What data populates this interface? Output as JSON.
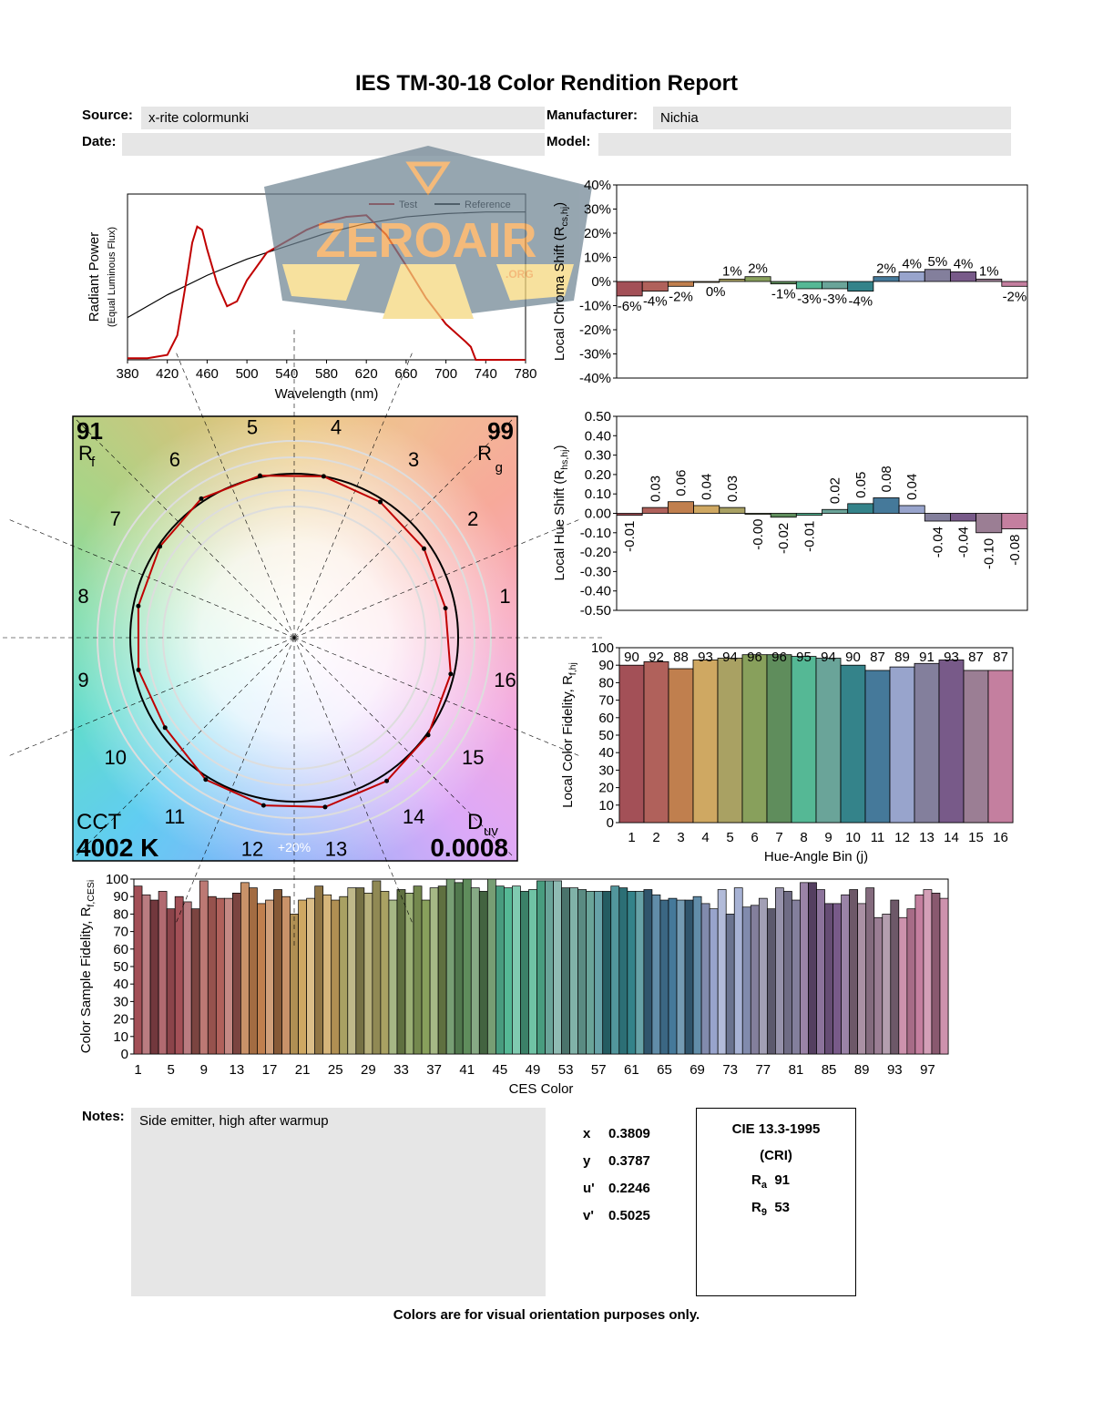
{
  "header": {
    "title": "IES TM-30-18 Color Rendition Report",
    "source_label": "Source:",
    "source_value": "x-rite colormunki",
    "manufacturer_label": "Manufacturer:",
    "manufacturer_value": "Nichia",
    "date_label": "Date:",
    "date_value": "",
    "model_label": "Model:",
    "model_value": ""
  },
  "watermark": {
    "text": "ZEROAIR",
    "suffix": ".ORG"
  },
  "bin_colors": [
    "#a35057",
    "#b0615b",
    "#c07f4e",
    "#cfa862",
    "#a9a163",
    "#88a05c",
    "#5f8d5c",
    "#55b895",
    "#6aa499",
    "#34838a",
    "#45799a",
    "#98a4cc",
    "#837f9c",
    "#785a89",
    "#9b7e94",
    "#c47f9f"
  ],
  "chart_data": [
    {
      "id": "spectrum",
      "type": "line",
      "xlabel": "Wavelength (nm)",
      "ylabel": "Radiant Power",
      "ylabel_sub": "(Equal Luminous Flux)",
      "xlim": [
        380,
        780
      ],
      "xticks": [
        380,
        420,
        460,
        500,
        540,
        580,
        620,
        660,
        700,
        740,
        780
      ],
      "legend_placement": "top-right",
      "series": [
        {
          "name": "Test",
          "color": "#c00000",
          "x": [
            380,
            400,
            420,
            430,
            440,
            445,
            450,
            455,
            460,
            470,
            480,
            490,
            500,
            520,
            540,
            560,
            580,
            600,
            620,
            640,
            660,
            680,
            700,
            720,
            725,
            730,
            780
          ],
          "y": [
            0.01,
            0.01,
            0.03,
            0.15,
            0.52,
            0.72,
            0.82,
            0.8,
            0.68,
            0.47,
            0.33,
            0.36,
            0.49,
            0.66,
            0.73,
            0.8,
            0.85,
            0.88,
            0.89,
            0.77,
            0.58,
            0.38,
            0.22,
            0.11,
            0.08,
            0,
            0
          ]
        },
        {
          "name": "Reference",
          "color": "#000000",
          "x": [
            380,
            420,
            460,
            500,
            540,
            580,
            620,
            660,
            700,
            740,
            780
          ],
          "y": [
            0.26,
            0.4,
            0.52,
            0.62,
            0.7,
            0.78,
            0.84,
            0.88,
            0.9,
            0.91,
            0.91
          ]
        }
      ]
    },
    {
      "id": "chroma",
      "type": "bar",
      "ylabel": "Local Chroma Shift (R",
      "ylabel_sub": "cs,hj",
      "ylabel_end": ")",
      "ylim": [
        -40,
        40
      ],
      "yticks": [
        "40%",
        "30%",
        "20%",
        "10%",
        "0%",
        "-10%",
        "-20%",
        "-30%",
        "-40%"
      ],
      "values": [
        -6,
        -4,
        -2,
        0,
        1,
        2,
        -1,
        -3,
        -3,
        -4,
        2,
        4,
        5,
        4,
        1,
        -2
      ],
      "labels": [
        "-6%",
        "-4%",
        "-2%",
        "0%",
        "1%",
        "2%",
        "-1%",
        "-3%",
        "-3%",
        "-4%",
        "2%",
        "4%",
        "5%",
        "4%",
        "1%",
        "-2%"
      ]
    },
    {
      "id": "hue",
      "type": "bar",
      "ylabel": "Local Hue Shift (R",
      "ylabel_sub": "hs,hj",
      "ylabel_end": ")",
      "ylim": [
        -0.5,
        0.5
      ],
      "yticks": [
        "0.50",
        "0.40",
        "0.30",
        "0.20",
        "0.10",
        "0.00",
        "-0.10",
        "-0.20",
        "-0.30",
        "-0.40",
        "-0.50"
      ],
      "values": [
        -0.01,
        0.03,
        0.06,
        0.04,
        0.03,
        -0.0,
        -0.02,
        -0.01,
        0.02,
        0.05,
        0.08,
        0.04,
        -0.04,
        -0.04,
        -0.1,
        -0.08
      ],
      "labels": [
        "-0.01",
        "0.03",
        "0.06",
        "0.04",
        "0.03",
        "-0.00",
        "-0.02",
        "-0.01",
        "0.02",
        "0.05",
        "0.08",
        "0.04",
        "-0.04",
        "-0.04",
        "-0.10",
        "-0.08"
      ]
    },
    {
      "id": "local_fidelity",
      "type": "bar",
      "xlabel": "Hue-Angle Bin (j)",
      "ylabel": "Local Color Fidelity, R",
      "ylabel_sub": "f,hj",
      "ylim": [
        0,
        100
      ],
      "yticks": [
        "100",
        "90",
        "80",
        "70",
        "60",
        "50",
        "40",
        "30",
        "20",
        "10",
        "0"
      ],
      "categories": [
        "1",
        "2",
        "3",
        "4",
        "5",
        "6",
        "7",
        "8",
        "9",
        "10",
        "11",
        "12",
        "13",
        "14",
        "15",
        "16"
      ],
      "values": [
        90,
        92,
        88,
        93,
        94,
        96,
        96,
        95,
        94,
        90,
        87,
        89,
        91,
        93,
        87,
        87
      ]
    },
    {
      "id": "ces",
      "type": "bar",
      "xlabel": "CES Color",
      "ylabel": "Color Sample Fidelity, R",
      "ylabel_sub": "f,CESi",
      "ylim": [
        0,
        100
      ],
      "yticks": [
        "100",
        "90",
        "80",
        "70",
        "60",
        "50",
        "40",
        "30",
        "20",
        "10",
        "0"
      ],
      "xticks": [
        "1",
        "5",
        "9",
        "13",
        "17",
        "21",
        "25",
        "29",
        "33",
        "37",
        "41",
        "45",
        "49",
        "53",
        "57",
        "61",
        "65",
        "69",
        "73",
        "77",
        "81",
        "85",
        "89",
        "93",
        "97"
      ],
      "values": [
        96,
        91,
        88,
        93,
        83,
        90,
        87,
        83,
        99,
        90,
        89,
        89,
        92,
        98,
        95,
        86,
        88,
        94,
        90,
        80,
        88,
        89,
        96,
        91,
        88,
        90,
        95,
        95,
        92,
        99,
        93,
        88,
        94,
        92,
        96,
        88,
        95,
        96,
        100,
        98,
        100,
        95,
        93,
        100,
        96,
        95,
        96,
        93,
        94,
        99,
        99,
        99,
        95,
        95,
        94,
        93,
        93,
        93,
        96,
        95,
        93,
        93,
        94,
        91,
        88,
        89,
        88,
        88,
        90,
        86,
        83,
        94,
        80,
        95,
        84,
        85,
        89,
        83,
        95,
        93,
        88,
        98,
        98,
        94,
        86,
        86,
        91,
        94,
        86,
        95,
        78,
        80,
        88,
        78,
        83,
        91,
        94,
        92,
        89
      ]
    },
    {
      "id": "vector_graphic",
      "type": "scatter",
      "bin_labels": [
        "1",
        "2",
        "3",
        "4",
        "5",
        "6",
        "7",
        "8",
        "9",
        "10",
        "11",
        "12",
        "13",
        "14",
        "15",
        "16"
      ],
      "ring_label": "+20%",
      "Rf": "91",
      "Rf_label": "R",
      "Rf_sub": "f",
      "Rg": "99",
      "Rg_label": "R",
      "Rg_sub": "g",
      "cct_label": "CCT",
      "cct": "4002 K",
      "duv_label": "D",
      "duv_sub": "uv",
      "duv": "0.0008"
    }
  ],
  "notes": {
    "label": "Notes:",
    "text": "Side emitter, high after warmup"
  },
  "chromaticity": [
    {
      "k": "x",
      "v": "0.3809"
    },
    {
      "k": "y",
      "v": "0.3787"
    },
    {
      "k": "u'",
      "v": "0.2246"
    },
    {
      "k": "v'",
      "v": "0.5025"
    }
  ],
  "cri": {
    "title": "CIE 13.3-1995",
    "subtitle": "(CRI)",
    "ra_label": "R",
    "ra_sub": "a",
    "ra": "91",
    "r9_label": "R",
    "r9_sub": "9",
    "r9": "53"
  },
  "footer": "Colors are for visual orientation purposes only."
}
